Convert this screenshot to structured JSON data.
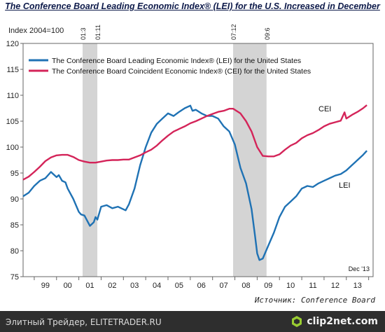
{
  "title": "The Conference Board Leading Economic Index® (LEI) for the U.S. Increased in December",
  "chart_data": {
    "type": "line",
    "ylabel": "Index 2004=100",
    "ylim": [
      75,
      120
    ],
    "yticks": [
      75,
      80,
      85,
      90,
      95,
      100,
      105,
      110,
      115,
      120
    ],
    "xlim": [
      1998.5,
      2014.2
    ],
    "xtick_labels": [
      "99",
      "00",
      "01",
      "02",
      "03",
      "04",
      "05",
      "06",
      "07",
      "08",
      "09",
      "10",
      "11",
      "12",
      "13"
    ],
    "grid": false,
    "legend_position": "top-left",
    "recessions": [
      {
        "label": "01:3",
        "start": 2001.17,
        "end": 2001.83,
        "end_label": "01:11"
      },
      {
        "label": "07:12",
        "start": 2007.92,
        "end": 2009.42,
        "end_label": "09:6"
      }
    ],
    "annotations": [
      "CEI",
      "LEI",
      "Dec '13"
    ],
    "series": [
      {
        "name": "The Conference Board Leading Economic Index® (LEI) for the United States",
        "short_name": "LEI",
        "color": "#1f72b4",
        "x": [
          1998.5,
          1998.75,
          1999.0,
          1999.25,
          1999.5,
          1999.75,
          2000.0,
          2000.1,
          2000.25,
          2000.4,
          2000.5,
          2000.75,
          2001.0,
          2001.1,
          2001.25,
          2001.5,
          2001.67,
          2001.75,
          2001.83,
          2002.0,
          2002.25,
          2002.5,
          2002.75,
          2003.0,
          2003.1,
          2003.25,
          2003.5,
          2003.75,
          2004.0,
          2004.25,
          2004.5,
          2004.75,
          2005.0,
          2005.25,
          2005.5,
          2005.75,
          2006.0,
          2006.1,
          2006.25,
          2006.5,
          2006.75,
          2007.0,
          2007.25,
          2007.5,
          2007.75,
          2008.0,
          2008.25,
          2008.5,
          2008.75,
          2008.9,
          2009.0,
          2009.1,
          2009.25,
          2009.5,
          2009.75,
          2010.0,
          2010.25,
          2010.5,
          2010.75,
          2011.0,
          2011.25,
          2011.5,
          2011.75,
          2012.0,
          2012.25,
          2012.5,
          2012.75,
          2013.0,
          2013.25,
          2013.5,
          2013.75,
          2013.92
        ],
        "values": [
          90.5,
          91.2,
          92.5,
          93.5,
          94.0,
          95.2,
          94.2,
          94.6,
          93.5,
          93.2,
          92.0,
          90.0,
          87.5,
          87.0,
          86.8,
          84.8,
          85.5,
          86.5,
          86.0,
          88.5,
          88.8,
          88.2,
          88.5,
          88.0,
          87.8,
          89.0,
          92.0,
          96.5,
          100.0,
          102.8,
          104.5,
          105.5,
          106.5,
          106.0,
          106.8,
          107.5,
          108.0,
          107.0,
          107.2,
          106.5,
          106.0,
          106.0,
          105.5,
          104.0,
          103.0,
          100.5,
          96.0,
          93.0,
          88.0,
          83.0,
          79.5,
          78.2,
          78.5,
          81.0,
          83.5,
          86.5,
          88.5,
          89.5,
          90.5,
          92.0,
          92.5,
          92.3,
          93.0,
          93.5,
          94.0,
          94.5,
          94.8,
          95.5,
          96.5,
          97.5,
          98.5,
          99.3
        ]
      },
      {
        "name": "The Conference Board Coincident Economic Index® (CEI) for the United States",
        "short_name": "CEI",
        "color": "#d42459",
        "x": [
          1998.5,
          1998.75,
          1999.0,
          1999.25,
          1999.5,
          1999.75,
          2000.0,
          2000.25,
          2000.5,
          2000.75,
          2001.0,
          2001.25,
          2001.5,
          2001.75,
          2002.0,
          2002.25,
          2002.5,
          2002.75,
          2003.0,
          2003.25,
          2003.5,
          2003.75,
          2004.0,
          2004.25,
          2004.5,
          2004.75,
          2005.0,
          2005.25,
          2005.5,
          2005.75,
          2006.0,
          2006.25,
          2006.5,
          2006.75,
          2007.0,
          2007.25,
          2007.5,
          2007.75,
          2007.92,
          2008.0,
          2008.25,
          2008.5,
          2008.75,
          2009.0,
          2009.25,
          2009.5,
          2009.75,
          2010.0,
          2010.25,
          2010.5,
          2010.75,
          2011.0,
          2011.25,
          2011.5,
          2011.75,
          2012.0,
          2012.25,
          2012.5,
          2012.75,
          2012.92,
          2013.0,
          2013.25,
          2013.5,
          2013.75,
          2013.92
        ],
        "values": [
          93.7,
          94.3,
          95.2,
          96.2,
          97.3,
          98.0,
          98.4,
          98.5,
          98.5,
          98.1,
          97.5,
          97.2,
          97.0,
          97.0,
          97.2,
          97.4,
          97.5,
          97.5,
          97.6,
          97.6,
          98.0,
          98.4,
          99.0,
          99.5,
          100.3,
          101.3,
          102.2,
          103.0,
          103.5,
          104.0,
          104.6,
          105.0,
          105.5,
          106.0,
          106.4,
          106.8,
          107.0,
          107.4,
          107.4,
          107.2,
          106.5,
          105.0,
          103.0,
          100.0,
          98.3,
          98.2,
          98.2,
          98.6,
          99.5,
          100.3,
          100.8,
          101.7,
          102.3,
          102.7,
          103.3,
          104.0,
          104.5,
          104.8,
          105.1,
          106.7,
          105.5,
          106.2,
          106.8,
          107.5,
          108.1
        ]
      }
    ]
  },
  "source_text": "Источник: Conference Board",
  "footer": {
    "site_text": "Элитный Трейдер, ELITETRADER.RU",
    "brand": "clip2net.com",
    "brand_icon": "hexagon-logo-icon"
  },
  "colors": {
    "recession_band": "#d4d4d4",
    "footer_background": "#2e2e2e",
    "title": "#0d1a4a"
  }
}
